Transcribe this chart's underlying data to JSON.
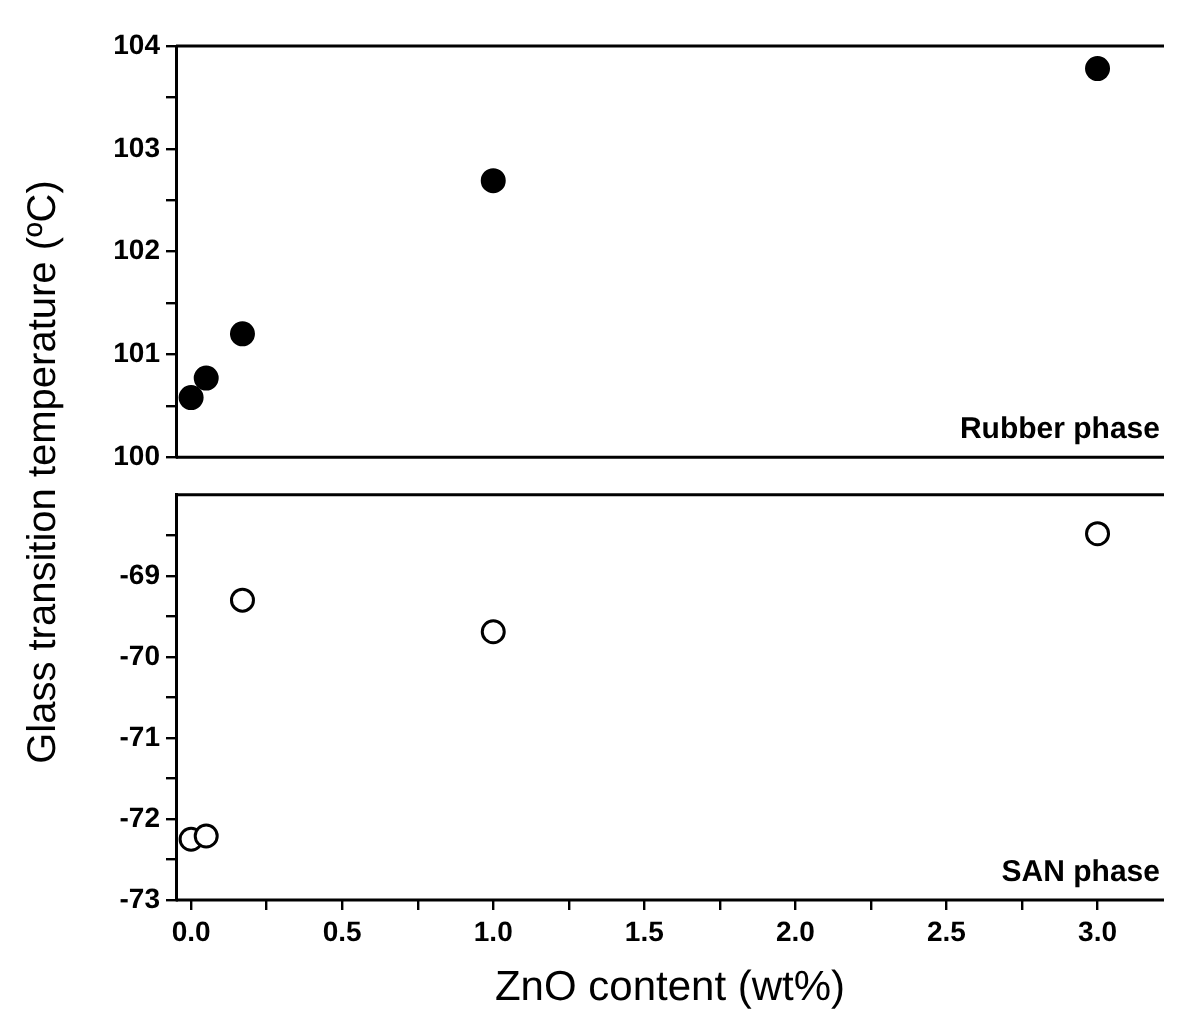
{
  "chart_data": [
    {
      "type": "scatter",
      "ylabel": "Glass transition temperature (ºC)",
      "x": [
        0,
        0.05,
        0.17,
        1,
        3
      ],
      "series": [
        {
          "color": "#000000",
          "values": [
            100.58,
            100.77,
            101.2,
            102.69,
            103.78
          ]
        }
      ],
      "xlim": [
        -0.05,
        3.22
      ],
      "ylim": [
        100,
        104
      ],
      "yticks": [
        100,
        {
          "value": 100.5,
          "label": null
        },
        101,
        {
          "value": 101.5,
          "label": null
        },
        102,
        {
          "value": 102.5,
          "label": null
        },
        103,
        {
          "value": 103.5,
          "label": null
        },
        104
      ],
      "tick_labels": "y",
      "grid": false,
      "legend": false,
      "marker": "circle",
      "annotations": [
        "Rubber phase"
      ]
    },
    {
      "type": "scatter",
      "xlabel": "ZnO content (wt%)",
      "x": [
        0,
        0.05,
        0.17,
        1,
        3
      ],
      "series": [
        {
          "color": "#000000",
          "values": [
            -72.25,
            -72.21,
            -69.3,
            -69.69,
            -68.48
          ]
        }
      ],
      "xlim": [
        -0.05,
        3.22
      ],
      "ylim": [
        -73,
        -68
      ],
      "xticks": [
        {
          "value": 0,
          "label": "0.0"
        },
        {
          "value": 0.25,
          "label": null
        },
        {
          "value": 0.5,
          "label": "0.5"
        },
        {
          "value": 0.75,
          "label": null
        },
        {
          "value": 1,
          "label": "1.0"
        },
        {
          "value": 1.25,
          "label": null
        },
        {
          "value": 1.5,
          "label": "1.5"
        },
        {
          "value": 1.75,
          "label": null
        },
        {
          "value": 2,
          "label": "2.0"
        },
        {
          "value": 2.25,
          "label": null
        },
        {
          "value": 2.5,
          "label": "2.5"
        },
        {
          "value": 2.75,
          "label": null
        },
        {
          "value": 3,
          "label": "3.0"
        }
      ],
      "yticks": [
        -73,
        {
          "value": -72.5,
          "label": null
        },
        -72,
        {
          "value": -71.5,
          "label": null
        },
        -71,
        {
          "value": -70.5,
          "label": null
        },
        -70,
        {
          "value": -69.5,
          "label": null
        },
        -69,
        {
          "value": -68.5,
          "label": null
        }
      ],
      "grid": false,
      "legend": false,
      "marker": "circle",
      "annotations": [
        "SAN phase"
      ]
    }
  ]
}
